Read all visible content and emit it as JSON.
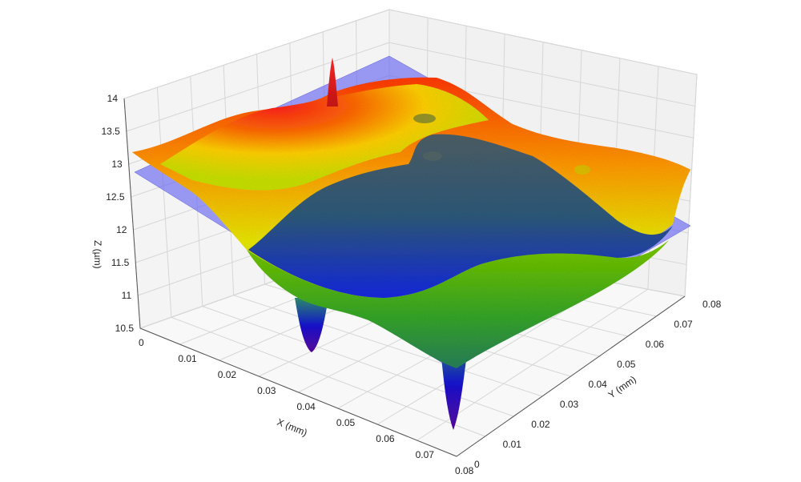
{
  "chart_data": {
    "type": "surface3d",
    "xlabel": "X (mm)",
    "ylabel": "Y (mm)",
    "zlabel": "Z (µm)",
    "x_ticks": [
      "0",
      "0.01",
      "0.02",
      "0.03",
      "0.04",
      "0.05",
      "0.06",
      "0.07",
      "0.08"
    ],
    "y_ticks": [
      "0",
      "0.01",
      "0.02",
      "0.03",
      "0.04",
      "0.05",
      "0.06",
      "0.07",
      "0.08"
    ],
    "z_ticks": [
      "10.5",
      "11",
      "11.5",
      "12",
      "12.5",
      "13",
      "13.5",
      "14"
    ],
    "xlim": [
      0,
      0.08
    ],
    "ylim": [
      0,
      0.08
    ],
    "zlim": [
      10.5,
      14
    ],
    "reference_plane_z": 12.3,
    "grid": true,
    "colormap": [
      "#1a1aff",
      "#2f8f2f",
      "#7fd400",
      "#ffe000",
      "#ff6a00",
      "#ff1a1a"
    ],
    "plane_color": "#6b6bf0",
    "features": [
      {
        "kind": "peak",
        "x": 0.004,
        "y": 0.055,
        "z": 13.9
      },
      {
        "kind": "pit",
        "x": 0.045,
        "y": 0.005,
        "z": 10.5
      },
      {
        "kind": "pit",
        "x": 0.072,
        "y": 0.022,
        "z": 10.6
      },
      {
        "kind": "pit",
        "x": 0.002,
        "y": 0.078,
        "z": 11.2
      }
    ]
  }
}
